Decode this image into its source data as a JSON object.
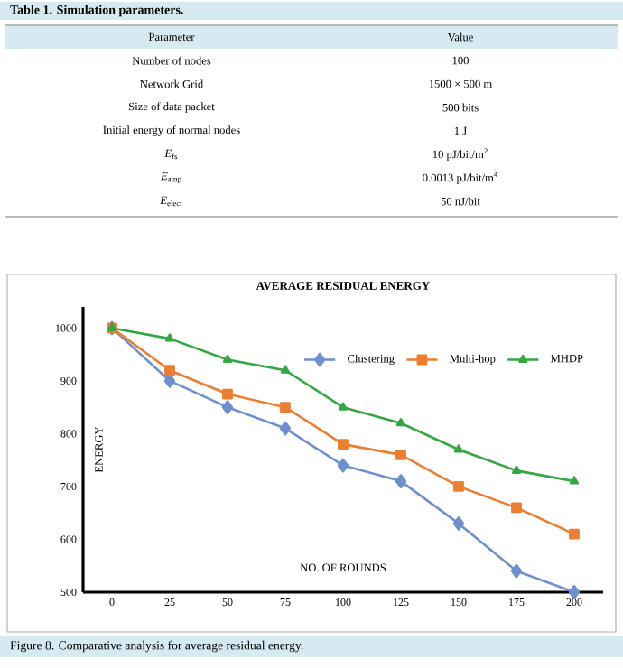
{
  "chart_data": [
    {
      "type": "other",
      "title": "Table 1. Simulation parameters.",
      "annotations": [
        "Parameter",
        "Value",
        "Number of nodes",
        "100",
        "Network Grid",
        "1500 × 500 m",
        "Size of data packet",
        "500 bits",
        "Initial energy of normal nodes",
        "1 J",
        "*E*$_{fs}$",
        "10 pJ/bit/m$^{2}$",
        "*E*$_{amp}$",
        "0.0013 pJ/bit/m$^{4}$",
        "*E*$_{elect}$",
        "50 nJ/bit"
      ]
    },
    {
      "type": "line",
      "title": "AVERAGE RESIDUAL ENERGY",
      "xlabel": "NO. OF ROUNDS",
      "ylabel": "ENERGY",
      "categories": [
        "0",
        "25",
        "50",
        "75",
        "100",
        "125",
        "150",
        "175",
        "200"
      ],
      "series": [
        {
          "name": "Clustering",
          "color": "#6f8fcf",
          "marker": "diamond",
          "values": [
            1000,
            900,
            850,
            810,
            740,
            710,
            630,
            540,
            500
          ]
        },
        {
          "name": "Multi-hop",
          "color": "#ed7d31",
          "marker": "square",
          "values": [
            1000,
            920,
            875,
            850,
            780,
            760,
            700,
            660,
            610
          ]
        },
        {
          "name": "MHDP",
          "color": "#33a744",
          "marker": "triangle",
          "values": [
            1000,
            980,
            940,
            920,
            850,
            820,
            770,
            730,
            710
          ]
        }
      ],
      "ylim": [
        500,
        1040
      ],
      "yticks": [
        500,
        600,
        700,
        800,
        900,
        1000
      ],
      "grid": false,
      "legend": "top right",
      "annotations": [
        "Figure 8. Comparative analysis for average residual energy."
      ]
    }
  ]
}
